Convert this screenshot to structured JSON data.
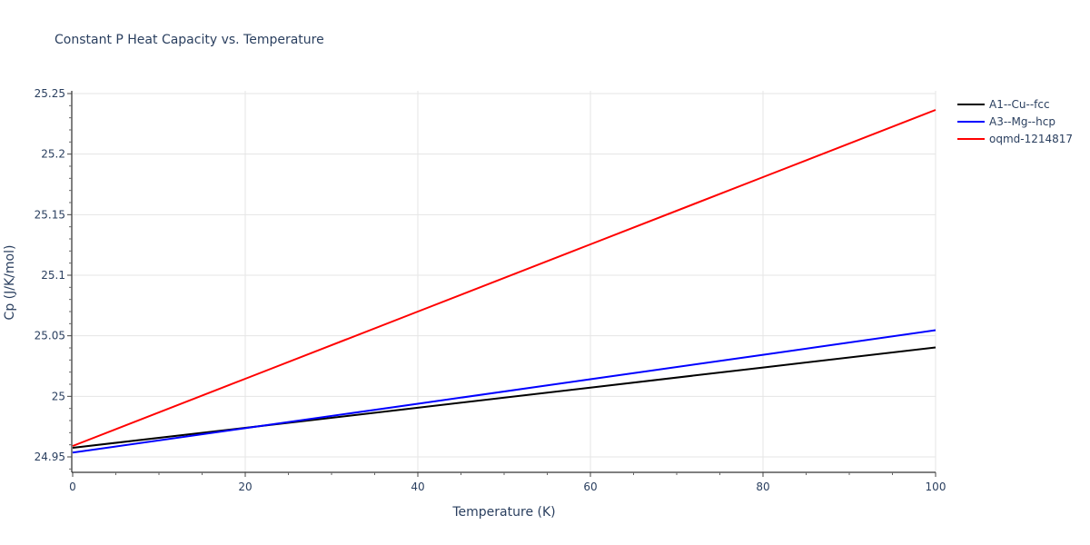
{
  "chart_data": {
    "type": "line",
    "title": "Constant P Heat Capacity vs. Temperature",
    "xlabel": "Temperature (K)",
    "ylabel": "Cp (J/K/mol)",
    "xlim": [
      0,
      100
    ],
    "ylim": [
      24.937,
      25.252
    ],
    "x_ticks": [
      0,
      20,
      40,
      60,
      80,
      100
    ],
    "y_ticks": [
      24.95,
      25,
      25.05,
      25.1,
      25.15,
      25.2,
      25.25
    ],
    "y_tick_labels": [
      "24.95",
      "25",
      "25.05",
      "25.1",
      "25.15",
      "25.2",
      "25.25"
    ],
    "grid": true,
    "legend_position": "right",
    "x": [
      0,
      20,
      40,
      60,
      80,
      100
    ],
    "series": [
      {
        "name": "A1--Cu--fcc",
        "color": "#000000",
        "values": [
          24.9575,
          24.974,
          24.9906,
          25.0072,
          25.0238,
          25.0404
        ]
      },
      {
        "name": "A3--Mg--hcp",
        "color": "#0000ff",
        "values": [
          24.9535,
          24.9737,
          24.9939,
          25.0141,
          25.0343,
          25.0546
        ]
      },
      {
        "name": "oqmd-1214817",
        "color": "#ff0000",
        "values": [
          24.959,
          25.0145,
          25.07,
          25.1255,
          25.181,
          25.2365
        ]
      }
    ]
  }
}
